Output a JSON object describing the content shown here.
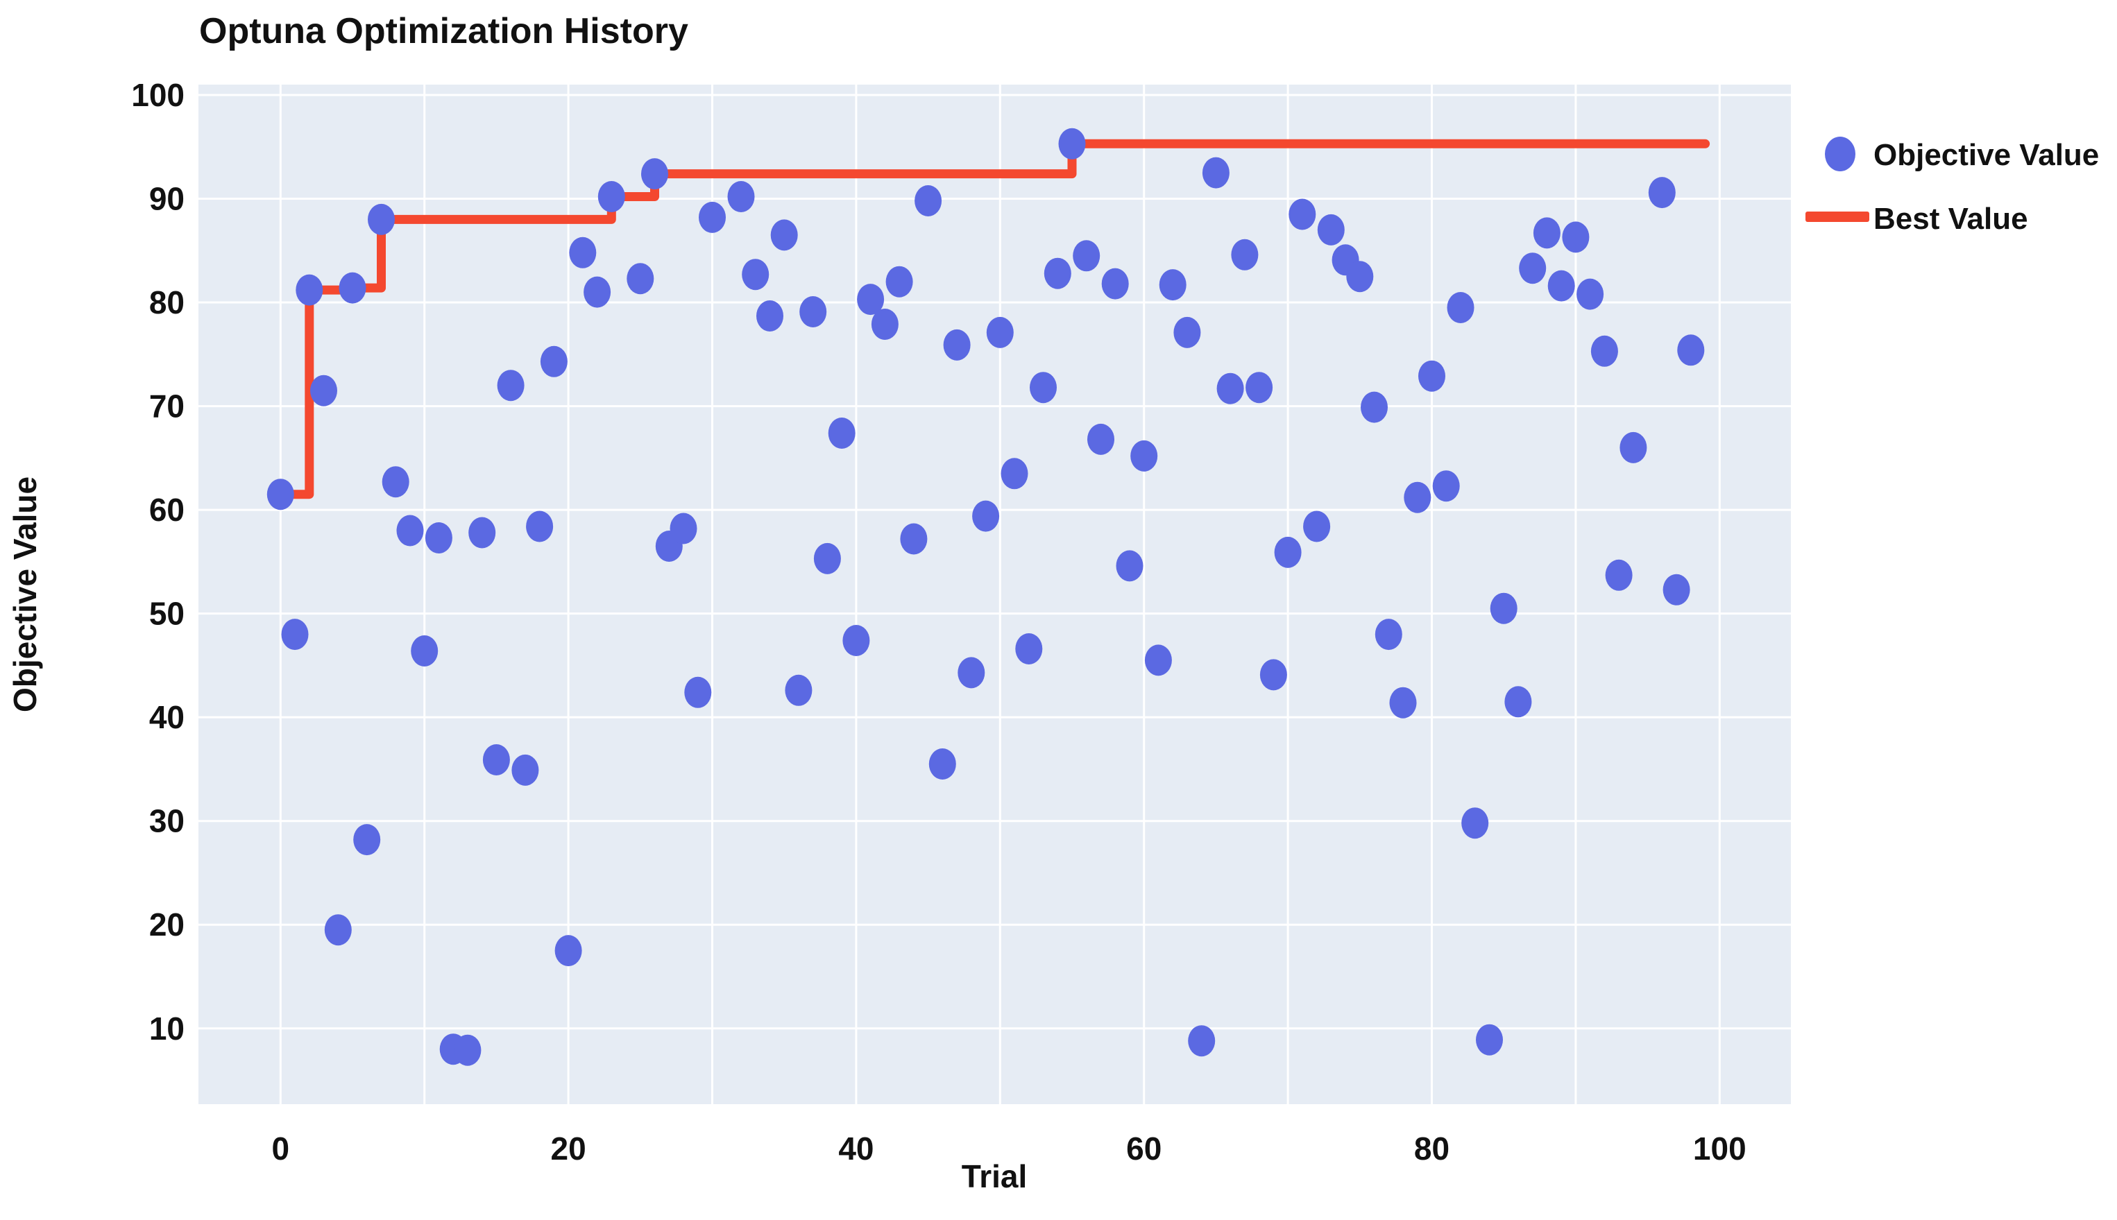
{
  "chart": {
    "title": "Optuna Optimization History",
    "xlabel": "Trial",
    "ylabel": "Objective Value",
    "legend": {
      "objective_label": "Objective Value",
      "best_label": "Best Value"
    }
  },
  "colors": {
    "dot_blue": "#5B69E2",
    "line_red": "#F4482F",
    "plot_bg": "#E6ECF4",
    "gridline": "#FFFFFF",
    "text": "#111111"
  },
  "chart_data": {
    "type": "scatter",
    "title": "Optuna Optimization History",
    "xlabel": "Trial",
    "ylabel": "Objective Value",
    "xlim": [
      -5.7,
      105.0
    ],
    "ylim": [
      2.7,
      101.0
    ],
    "x_ticks": [
      0,
      20,
      40,
      60,
      80,
      100
    ],
    "y_ticks": [
      10,
      20,
      30,
      40,
      50,
      60,
      70,
      80,
      90,
      100
    ],
    "grid": true,
    "grid_step_x": 10,
    "grid_step_y": 10,
    "legend_position": "top-right",
    "series": [
      {
        "name": "Objective Value",
        "type": "scatter",
        "x": [
          0,
          1,
          2,
          3,
          4,
          5,
          6,
          7,
          8,
          9,
          10,
          11,
          12,
          13,
          14,
          15,
          16,
          17,
          18,
          19,
          20,
          21,
          22,
          23,
          25,
          26,
          27,
          28,
          29,
          30,
          32,
          33,
          34,
          35,
          36,
          37,
          38,
          39,
          40,
          41,
          42,
          43,
          44,
          45,
          46,
          47,
          48,
          49,
          50,
          51,
          52,
          53,
          54,
          55,
          56,
          57,
          58,
          59,
          60,
          61,
          62,
          63,
          64,
          65,
          66,
          67,
          68,
          69,
          70,
          71,
          72,
          73,
          74,
          75,
          76,
          77,
          78,
          79,
          80,
          81,
          82,
          83,
          84,
          85,
          86,
          87,
          88,
          89,
          90,
          91,
          92,
          93,
          94,
          96,
          97,
          98
        ],
        "y": [
          61.5,
          48.0,
          81.2,
          71.5,
          19.5,
          81.4,
          28.2,
          88.0,
          62.7,
          58.0,
          46.4,
          57.3,
          8.0,
          7.9,
          57.8,
          35.9,
          72.0,
          34.9,
          58.4,
          74.3,
          17.5,
          84.8,
          81.0,
          90.2,
          82.3,
          92.4,
          56.5,
          58.2,
          42.4,
          88.2,
          90.2,
          82.7,
          78.7,
          86.5,
          42.6,
          79.1,
          55.3,
          67.4,
          47.4,
          80.3,
          77.9,
          82.0,
          57.2,
          89.8,
          35.5,
          75.9,
          44.3,
          59.4,
          77.1,
          63.5,
          46.6,
          71.8,
          82.8,
          95.3,
          84.5,
          66.8,
          81.8,
          54.6,
          65.2,
          45.5,
          81.7,
          77.1,
          8.8,
          92.5,
          71.7,
          84.6,
          71.8,
          44.1,
          55.9,
          88.5,
          58.4,
          87.0,
          84.1,
          82.5,
          69.9,
          48.0,
          41.4,
          61.2,
          72.9,
          62.3,
          79.5,
          29.8,
          8.9,
          50.5,
          41.5,
          83.3,
          86.7,
          81.6,
          86.3,
          80.8,
          75.3,
          53.7,
          66.0,
          90.6,
          52.3,
          75.4
        ]
      },
      {
        "name": "Best Value",
        "type": "step-line",
        "x": [
          0,
          2,
          2,
          5,
          5,
          7,
          7,
          23,
          23,
          26,
          26,
          55,
          55,
          99
        ],
        "y": [
          61.5,
          61.5,
          81.2,
          81.2,
          81.4,
          81.4,
          88.0,
          88.0,
          90.2,
          90.2,
          92.4,
          92.4,
          95.3,
          95.3
        ]
      }
    ]
  }
}
